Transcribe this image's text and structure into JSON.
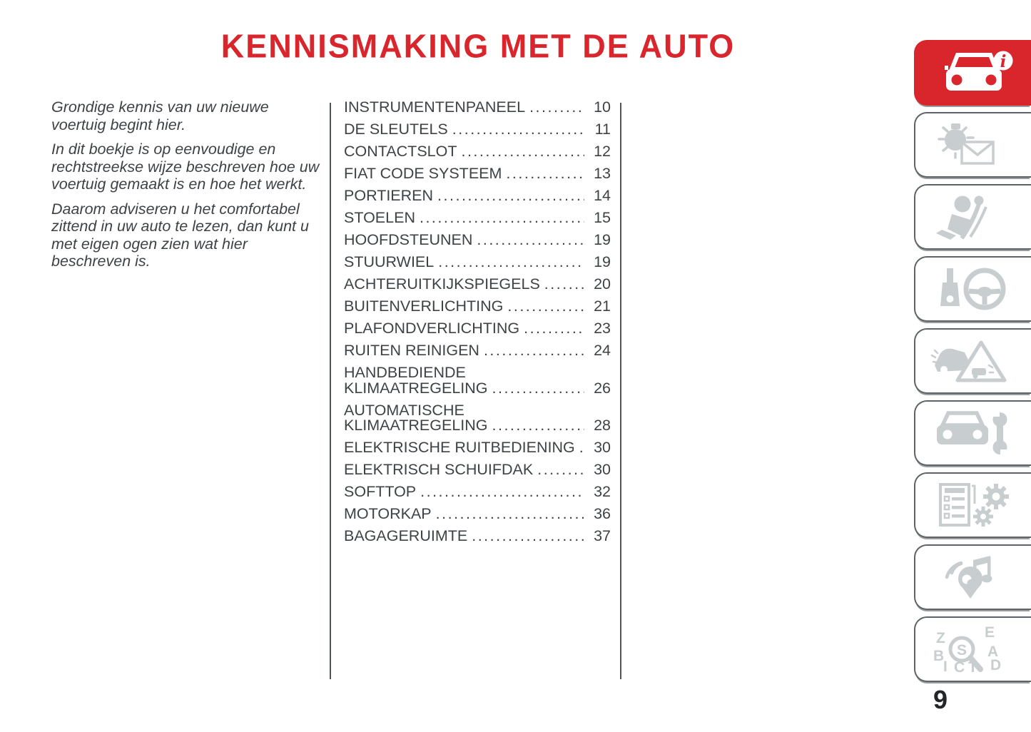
{
  "page": {
    "title": "KENNISMAKING MET DE AUTO",
    "number": "9"
  },
  "intro": {
    "paragraphs": [
      "Grondige kennis van uw nieuwe voertuig begint hier.",
      "In dit boekje is op eenvoudige en rechtstreekse wijze beschreven hoe uw voertuig gemaakt is en hoe het werkt.",
      "Daarom adviseren u het comfortabel zittend in uw auto te lezen, dan kunt u met eigen ogen zien wat hier beschreven is."
    ]
  },
  "toc": {
    "items": [
      {
        "label": "INSTRUMENTENPANEEL",
        "page": "10"
      },
      {
        "label": "DE SLEUTELS",
        "page": "11"
      },
      {
        "label": "CONTACTSLOT",
        "page": "12"
      },
      {
        "label": "FIAT CODE SYSTEEM",
        "page": "13"
      },
      {
        "label": "PORTIEREN",
        "page": "14"
      },
      {
        "label": "STOELEN",
        "page": "15"
      },
      {
        "label": "HOOFDSTEUNEN",
        "page": "19"
      },
      {
        "label": "STUURWIEL",
        "page": "19"
      },
      {
        "label": "ACHTERUITKIJKSPIEGELS",
        "page": "20"
      },
      {
        "label": "BUITENVERLICHTING",
        "page": "21"
      },
      {
        "label": "PLAFONDVERLICHTING",
        "page": "23"
      },
      {
        "label": "RUITEN REINIGEN",
        "page": "24"
      },
      {
        "label": "HANDBEDIENDE\nKLIMAATREGELING",
        "page": "26"
      },
      {
        "label": "AUTOMATISCHE\nKLIMAATREGELING",
        "page": "28"
      },
      {
        "label": "ELEKTRISCHE RUITBEDIENING",
        "page": "30"
      },
      {
        "label": "ELEKTRISCH SCHUIFDAK",
        "page": "30"
      },
      {
        "label": "SOFTTOP",
        "page": "32"
      },
      {
        "label": "MOTORKAP",
        "page": "36"
      },
      {
        "label": "BAGAGERUIMTE",
        "page": "37"
      }
    ]
  },
  "sidebar": {
    "tabs": [
      {
        "icon": "car-info-icon",
        "active": true
      },
      {
        "icon": "warning-lights-message-icon",
        "active": false
      },
      {
        "icon": "airbag-safety-icon",
        "active": false
      },
      {
        "icon": "key-steering-wheel-icon",
        "active": false
      },
      {
        "icon": "emergency-triangle-icon",
        "active": false
      },
      {
        "icon": "car-maintenance-icon",
        "active": false
      },
      {
        "icon": "specifications-gears-icon",
        "active": false
      },
      {
        "icon": "multimedia-navigation-icon",
        "active": false
      },
      {
        "icon": "alphabetical-index-icon",
        "active": false
      }
    ]
  },
  "colors": {
    "accent_red": "#D9252C",
    "icon_gray": "#C8CDD0",
    "tab_border_gray": "#5D6366",
    "text_gray": "#3E4245"
  }
}
